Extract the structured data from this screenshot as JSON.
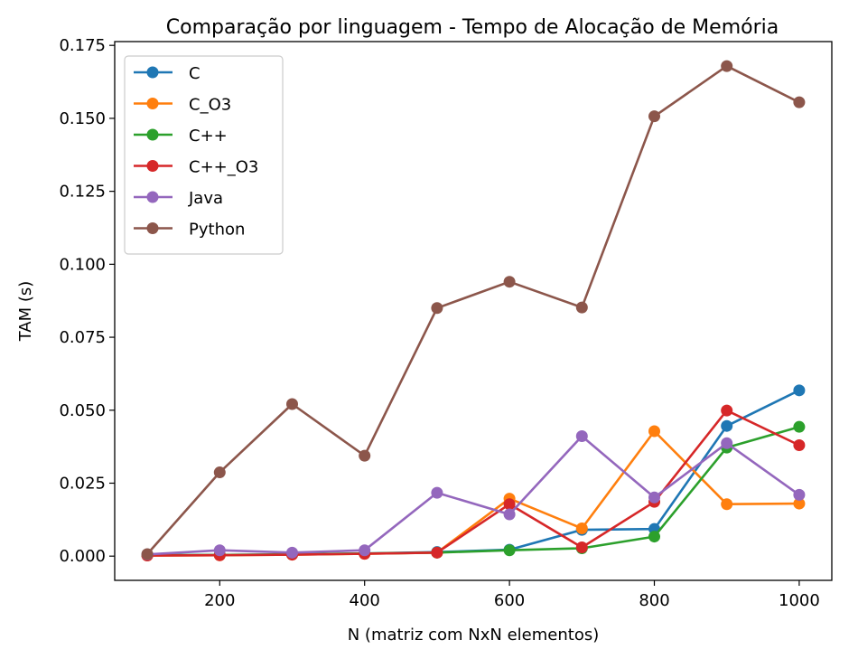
{
  "chart_data": {
    "type": "line",
    "title": "Comparação por linguagem - Tempo de Alocação de Memória",
    "xlabel": "N (matriz com NxN elementos)",
    "ylabel": "TAM (s)",
    "x": [
      100,
      200,
      300,
      400,
      500,
      600,
      700,
      800,
      900,
      1000
    ],
    "xlim": [
      55,
      1045
    ],
    "ylim": [
      -0.0083,
      0.1763
    ],
    "xticks": [
      200,
      400,
      600,
      800,
      1000
    ],
    "xtick_labels": [
      "200",
      "400",
      "600",
      "800",
      "1000"
    ],
    "yticks": [
      0.0,
      0.025,
      0.05,
      0.075,
      0.1,
      0.125,
      0.15,
      0.175
    ],
    "ytick_labels": [
      "0.000",
      "0.025",
      "0.050",
      "0.075",
      "0.100",
      "0.125",
      "0.150",
      "0.175"
    ],
    "grid": false,
    "legend_position": "top-left",
    "series": [
      {
        "name": "C",
        "color": "#1f77b4",
        "values": [
          0.0003,
          0.0004,
          0.0006,
          0.0009,
          0.0014,
          0.0022,
          0.009,
          0.0093,
          0.0446,
          0.0568
        ]
      },
      {
        "name": "C_O3",
        "color": "#ff7f0e",
        "values": [
          0.0002,
          0.0003,
          0.0005,
          0.0008,
          0.0012,
          0.0197,
          0.0095,
          0.0428,
          0.0178,
          0.018
        ]
      },
      {
        "name": "C++",
        "color": "#2ca02c",
        "values": [
          0.0003,
          0.0004,
          0.0006,
          0.0009,
          0.0012,
          0.002,
          0.0027,
          0.0067,
          0.0372,
          0.0443
        ]
      },
      {
        "name": "C++_O3",
        "color": "#d62728",
        "values": [
          0.0002,
          0.0003,
          0.0005,
          0.0008,
          0.0012,
          0.0178,
          0.003,
          0.0186,
          0.0499,
          0.038
        ]
      },
      {
        "name": "Java",
        "color": "#9467bd",
        "values": [
          0.0006,
          0.002,
          0.0012,
          0.002,
          0.0217,
          0.0143,
          0.0411,
          0.0201,
          0.0387,
          0.021
        ]
      },
      {
        "name": "Python",
        "color": "#8c564b",
        "values": [
          0.0007,
          0.0287,
          0.0521,
          0.0344,
          0.085,
          0.094,
          0.0852,
          0.1507,
          0.1679,
          0.1555
        ]
      }
    ]
  }
}
